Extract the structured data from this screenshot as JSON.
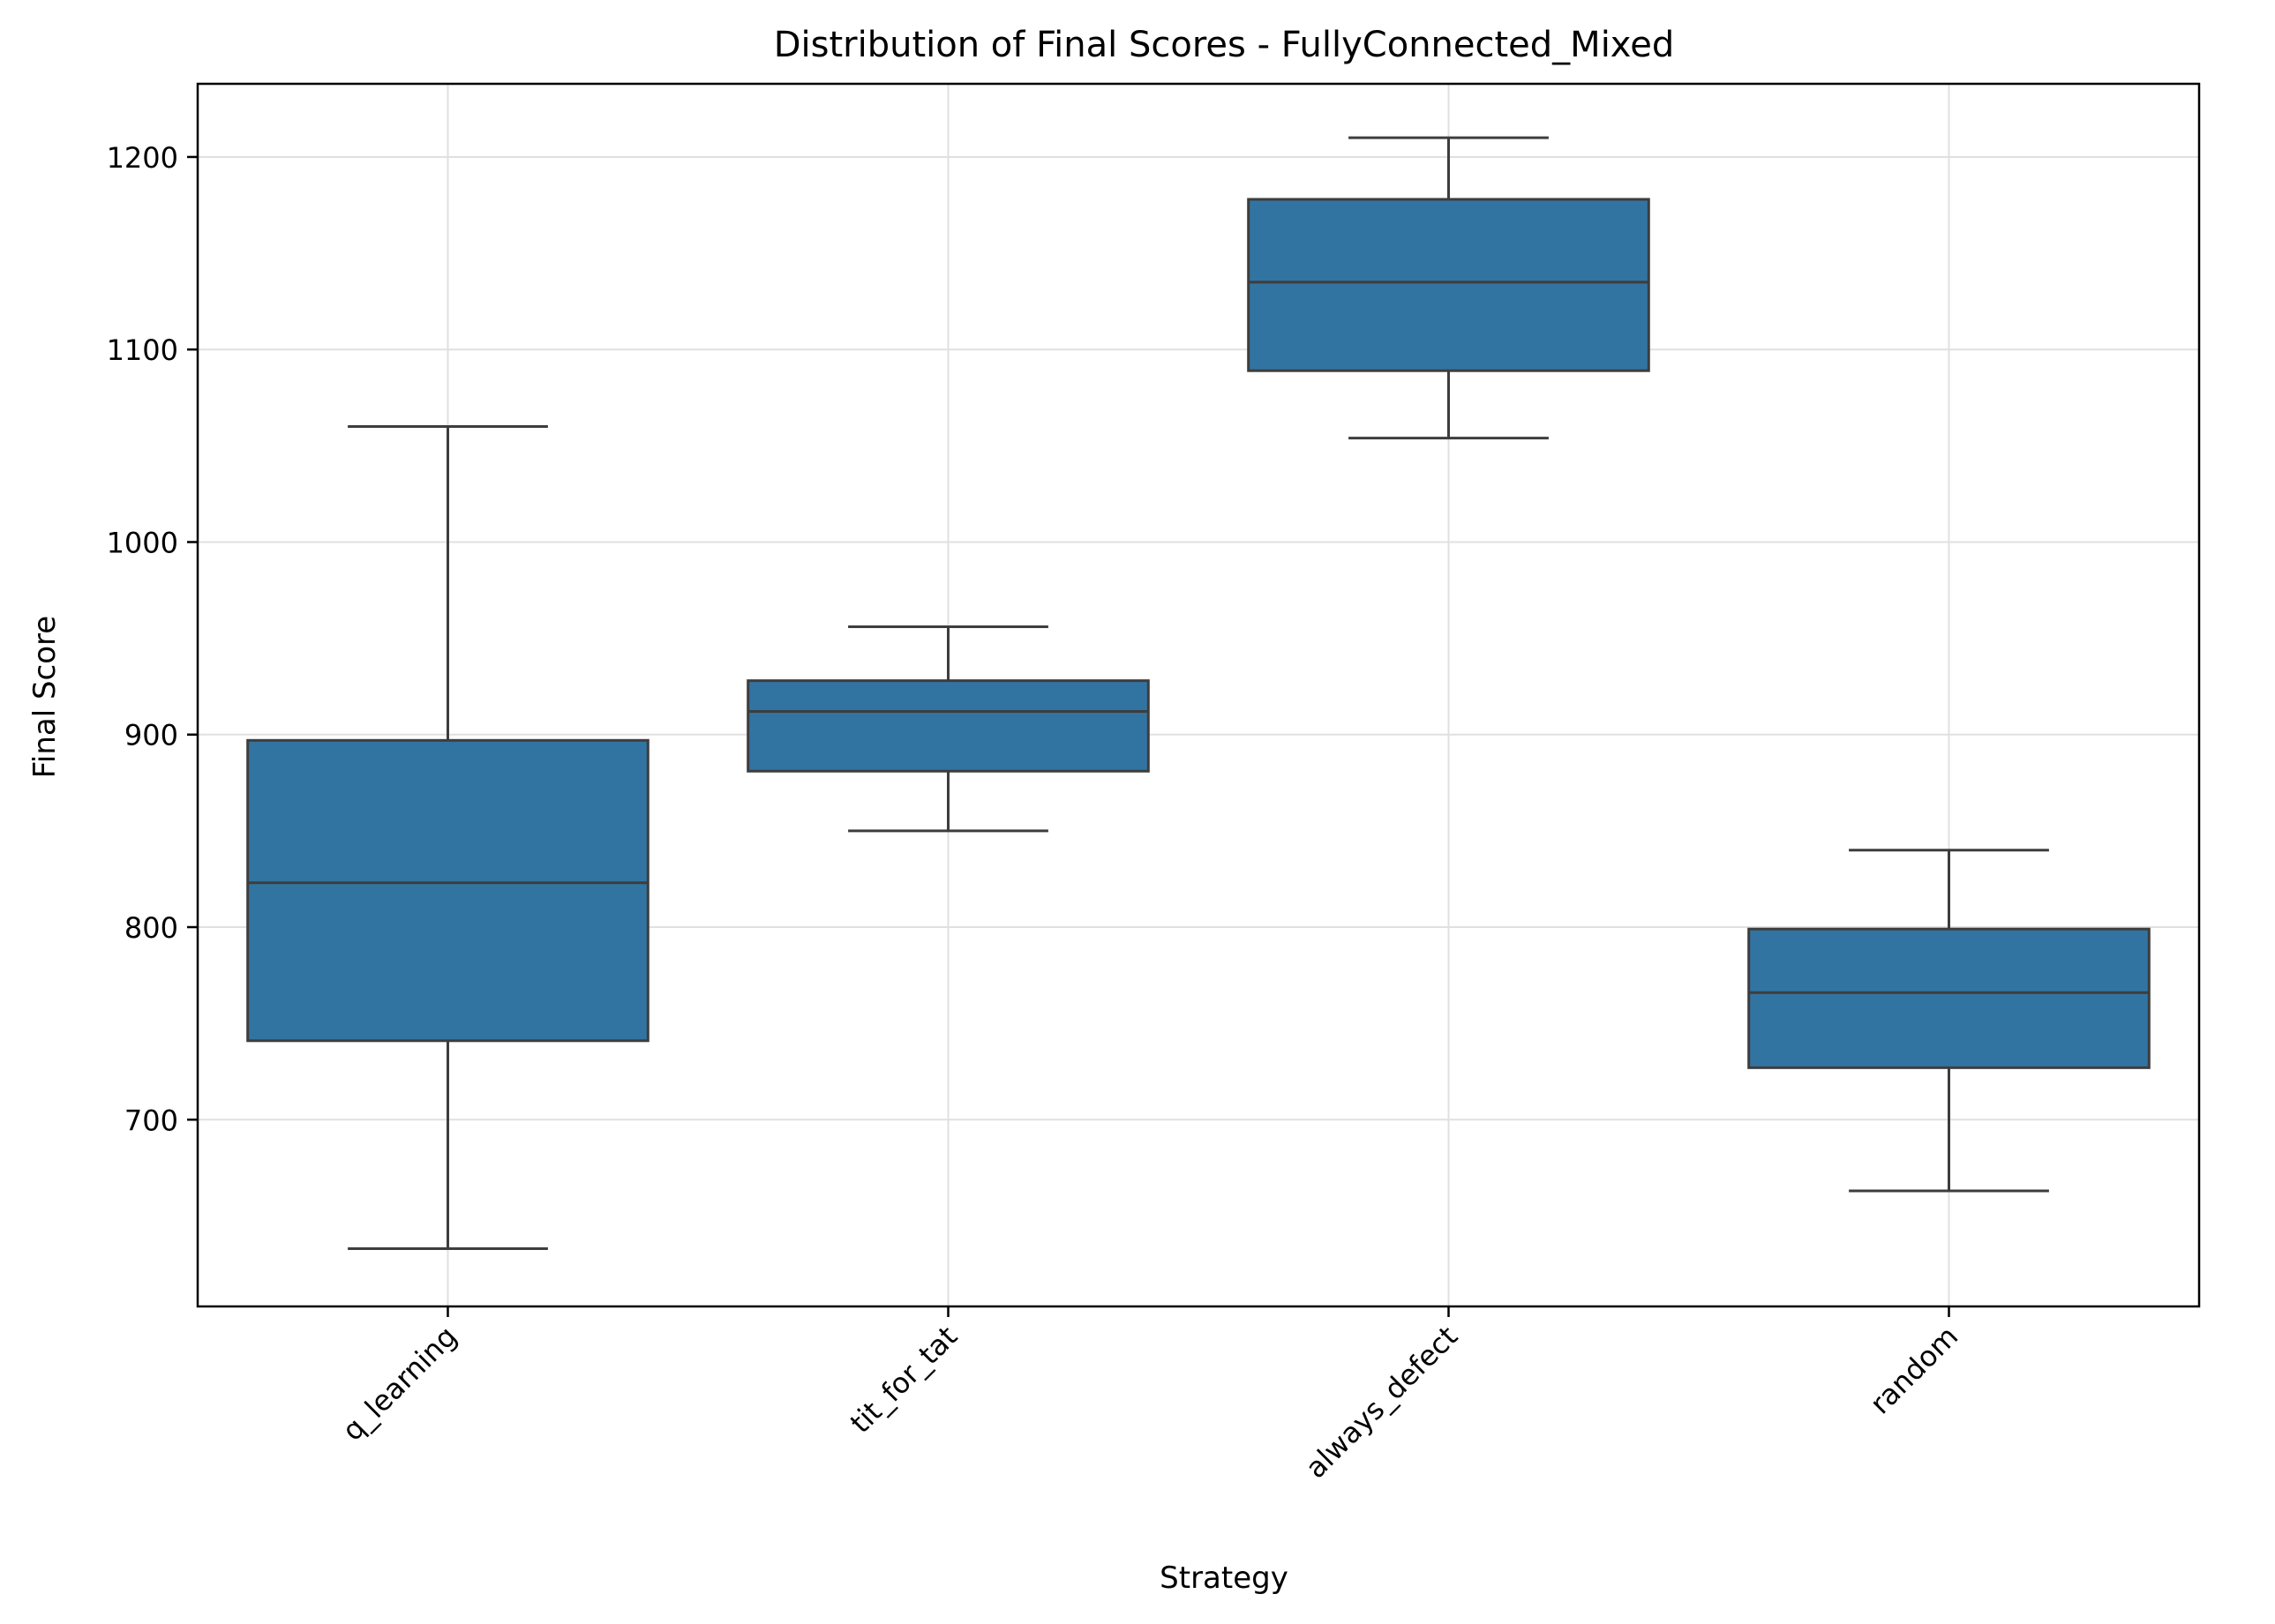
{
  "chart_data": {
    "type": "box",
    "title": "Distribution of Final Scores - FullyConnected_Mixed",
    "xlabel": "Strategy",
    "ylabel": "Final Score",
    "categories": [
      "q_learning",
      "tit_for_tat",
      "always_defect",
      "random"
    ],
    "boxes": [
      {
        "category": "q_learning",
        "whisker_low": 633,
        "q1": 741,
        "median": 823,
        "q3": 897,
        "whisker_high": 1060
      },
      {
        "category": "tit_for_tat",
        "whisker_low": 850,
        "q1": 881,
        "median": 912,
        "q3": 928,
        "whisker_high": 956
      },
      {
        "category": "always_defect",
        "whisker_low": 1054,
        "q1": 1089,
        "median": 1135,
        "q3": 1178,
        "whisker_high": 1210
      },
      {
        "category": "random",
        "whisker_low": 663,
        "q1": 727,
        "median": 766,
        "q3": 799,
        "whisker_high": 840
      }
    ],
    "yticks": [
      700,
      800,
      900,
      1000,
      1100,
      1200
    ],
    "ylim": [
      603,
      1238
    ],
    "grid": true,
    "legend": "none",
    "box_color": "#3274a1",
    "line_color": "#3d3d3d"
  }
}
